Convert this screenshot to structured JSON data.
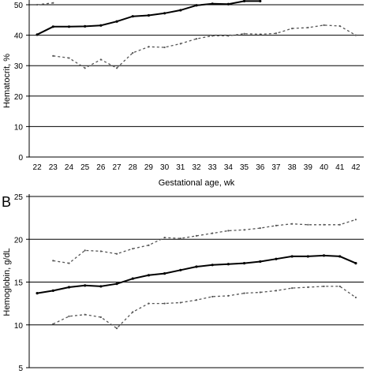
{
  "chart_data": [
    {
      "type": "line",
      "panel_label": "",
      "xlabel": "Gestational age, wk",
      "ylabel": "Hematocrit, %",
      "x": [
        22,
        23,
        24,
        25,
        26,
        27,
        28,
        29,
        30,
        31,
        32,
        33,
        34,
        35,
        36,
        37,
        38,
        39,
        40,
        41,
        42
      ],
      "ylim": [
        0,
        50
      ],
      "yticks": [
        0,
        10,
        20,
        30,
        40,
        50
      ],
      "grid": true,
      "series": [
        {
          "style": "solid",
          "values": [
            40.2,
            42.8,
            42.8,
            42.9,
            43.2,
            44.5,
            46.2,
            46.5,
            47.2,
            48.2,
            49.8,
            50.3,
            50.2,
            51.2,
            51.2,
            null,
            null,
            null,
            null,
            null,
            null
          ]
        },
        {
          "style": "dashed",
          "values": [
            null,
            33.2,
            32.5,
            29.2,
            32.0,
            29.2,
            34.2,
            36.2,
            36.0,
            37.2,
            38.8,
            39.8,
            39.8,
            40.5,
            40.3,
            40.6,
            42.2,
            42.5,
            43.3,
            43.0,
            40.0
          ]
        },
        {
          "style": "dashed",
          "values": [
            50.0,
            50.6,
            null,
            null,
            null,
            null,
            null,
            null,
            null,
            null,
            null,
            null,
            null,
            null,
            null,
            null,
            null,
            null,
            null,
            null,
            null
          ]
        }
      ]
    },
    {
      "type": "line",
      "panel_label": "B",
      "xlabel": "",
      "ylabel": "Hemoglobin, g/dL",
      "x": [
        22,
        23,
        24,
        25,
        26,
        27,
        28,
        29,
        30,
        31,
        32,
        33,
        34,
        35,
        36,
        37,
        38,
        39,
        40,
        41,
        42
      ],
      "ylim": [
        5,
        25
      ],
      "yticks": [
        5,
        10,
        15,
        20,
        25
      ],
      "grid": true,
      "series": [
        {
          "style": "solid",
          "values": [
            13.7,
            14.0,
            14.4,
            14.6,
            14.5,
            14.8,
            15.4,
            15.8,
            16.0,
            16.4,
            16.8,
            17.0,
            17.1,
            17.2,
            17.4,
            17.7,
            18.0,
            18.0,
            18.1,
            18.0,
            17.2
          ]
        },
        {
          "style": "dashed",
          "values": [
            null,
            17.5,
            17.2,
            18.7,
            18.6,
            18.3,
            18.9,
            19.3,
            20.2,
            20.1,
            20.4,
            20.7,
            21.0,
            21.1,
            21.3,
            21.6,
            21.8,
            21.7,
            21.7,
            21.7,
            22.3
          ]
        },
        {
          "style": "dashed",
          "values": [
            null,
            10.1,
            11.0,
            11.2,
            10.9,
            9.6,
            11.5,
            12.5,
            12.5,
            12.6,
            12.9,
            13.3,
            13.4,
            13.7,
            13.8,
            14.0,
            14.3,
            14.4,
            14.5,
            14.5,
            13.2
          ]
        }
      ]
    }
  ]
}
